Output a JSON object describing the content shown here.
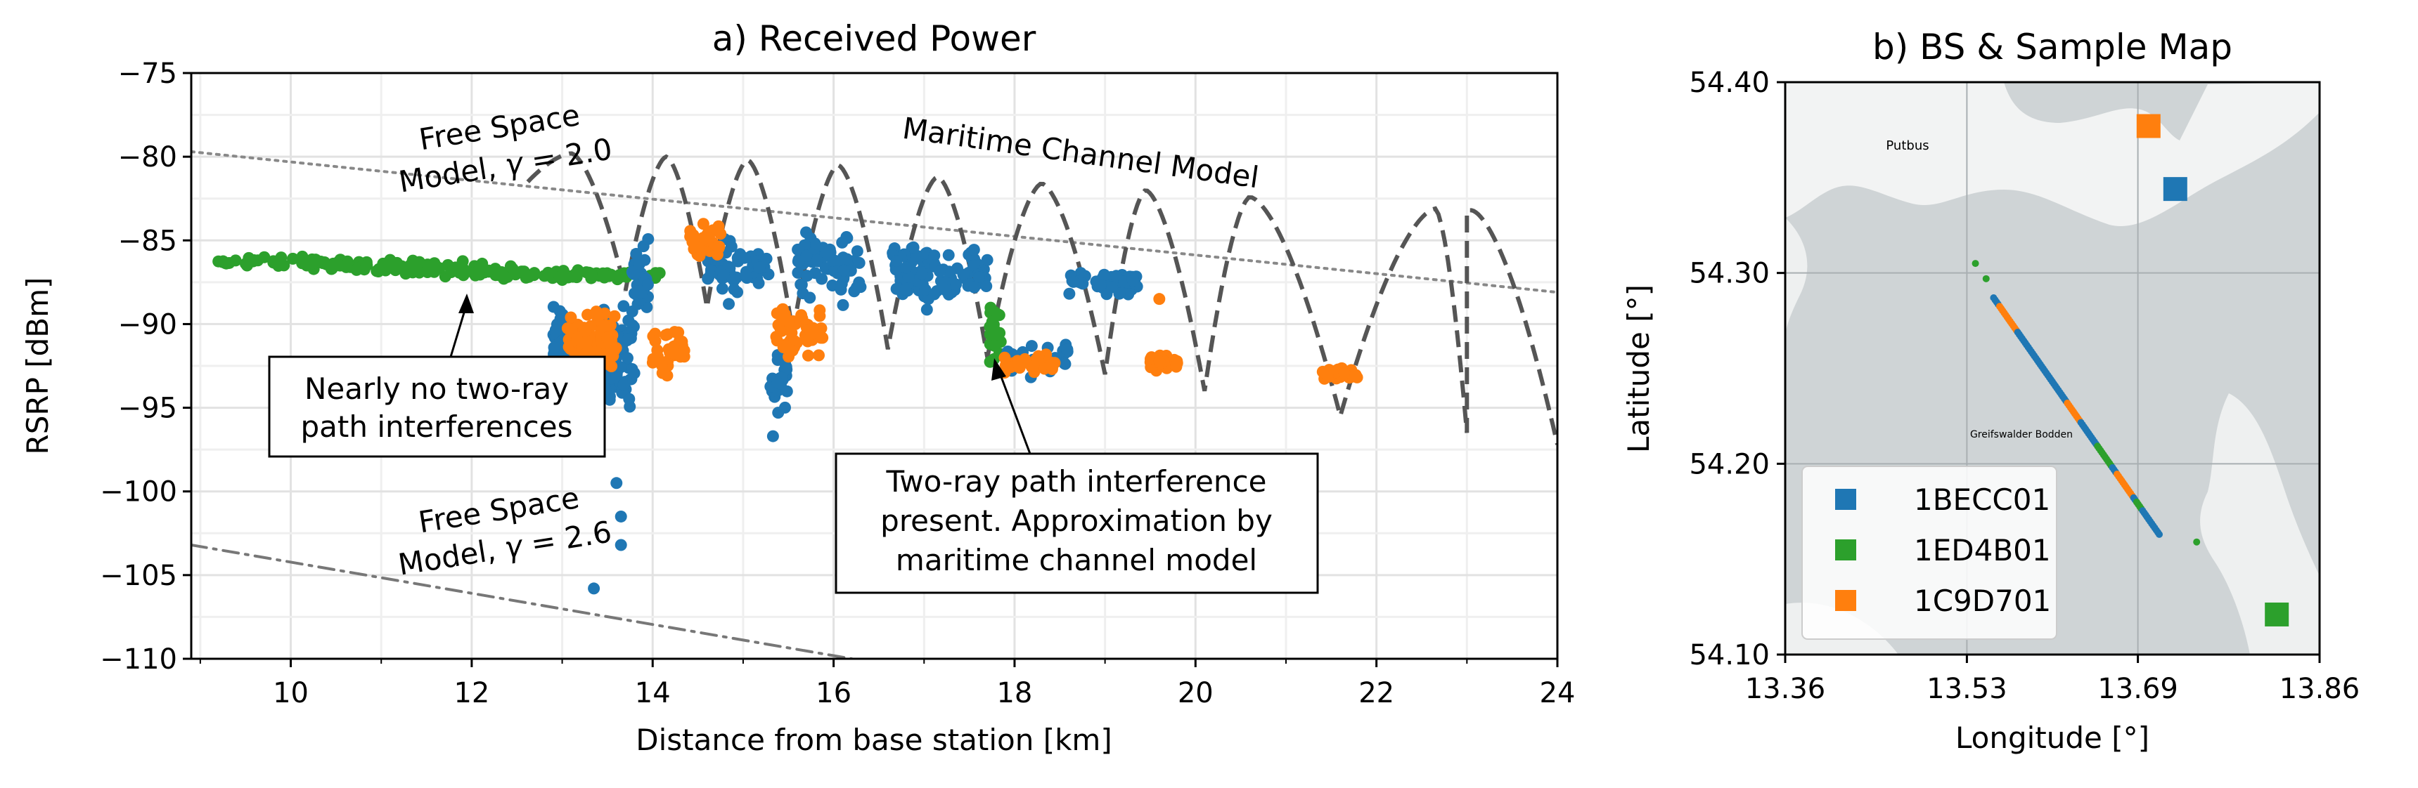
{
  "chart_data": [
    {
      "panel": "a",
      "type": "scatter",
      "title": "a) Received Power",
      "xlabel": "Distance from base station [km]",
      "ylabel": "RSRP [dBm]",
      "xlim": [
        8.9,
        24
      ],
      "ylim": [
        -110,
        -75
      ],
      "xticks": [
        10,
        12,
        14,
        16,
        18,
        20,
        22,
        24
      ],
      "xtick_labels": [
        "10",
        "12",
        "14",
        "16",
        "18",
        "20",
        "22",
        "24"
      ],
      "yticks": [
        -110,
        -105,
        -100,
        -95,
        -90,
        -85,
        -80,
        -75
      ],
      "ytick_labels": [
        "−110",
        "−105",
        "−100",
        "−95",
        "−90",
        "−85",
        "−80",
        "−75"
      ],
      "grid": true,
      "colors": {
        "blue": "#1f77b4",
        "green": "#2ca02c",
        "orange": "#ff7f0e",
        "model": "#555555",
        "fs20": "#888888",
        "fs26": "#777777"
      },
      "lines": [
        {
          "name": "Free Space Model, gamma = 2.0",
          "style": "dotted",
          "points": [
            [
              8.9,
              -79.7
            ],
            [
              24,
              -88.1
            ]
          ]
        },
        {
          "name": "Free Space Model, gamma = 2.6",
          "style": "dashdot",
          "points": [
            [
              8.9,
              -103.2
            ],
            [
              16.2,
              -110
            ]
          ]
        },
        {
          "name": "Maritime Channel Model",
          "style": "dashed",
          "segments": [
            {
              "x0": 12.62,
              "x1": 13.7,
              "peak_x": 13.1,
              "peak_y": -79.8,
              "start_y": -81.5,
              "end_y": -88.0
            },
            {
              "x0": 13.7,
              "x1": 14.6,
              "peak_x": 14.15,
              "peak_y": -80.0,
              "start_y": -88.0,
              "end_y": -89.0
            },
            {
              "x0": 14.6,
              "x1": 15.55,
              "peak_x": 15.05,
              "peak_y": -80.2,
              "start_y": -89.0,
              "end_y": -90.5
            },
            {
              "x0": 15.55,
              "x1": 16.6,
              "peak_x": 16.05,
              "peak_y": -80.5,
              "start_y": -90.5,
              "end_y": -91.5
            },
            {
              "x0": 16.6,
              "x1": 17.7,
              "peak_x": 17.15,
              "peak_y": -81.2,
              "start_y": -91.5,
              "end_y": -92.0
            },
            {
              "x0": 17.7,
              "x1": 19.0,
              "peak_x": 18.3,
              "peak_y": -81.6,
              "start_y": -92.0,
              "end_y": -93.0
            },
            {
              "x0": 19.0,
              "x1": 20.1,
              "peak_x": 19.45,
              "peak_y": -82.0,
              "start_y": -93.0,
              "end_y": -94.0
            },
            {
              "x0": 20.1,
              "x1": 21.6,
              "peak_x": 20.6,
              "peak_y": -82.4,
              "start_y": -94.0,
              "end_y": -95.5
            },
            {
              "x0": 21.6,
              "x1": 23.0,
              "peak_x": 22.65,
              "peak_y": -83.1,
              "start_y": -95.5,
              "end_y": -96.5
            },
            {
              "x0": 23.0,
              "x1": 24.0,
              "peak_x": 23.05,
              "peak_y": -83.2,
              "start_y": -83.2,
              "end_y": -97.2
            }
          ]
        }
      ],
      "series": [
        {
          "name": "1ED4B01",
          "color": "green",
          "clusters": [
            {
              "x": [
                9.2,
                12.6
              ],
              "y_center": -86.4,
              "spread": 0.6,
              "trend": [
                -86.2,
                -86.9
              ],
              "n": 150
            },
            {
              "x": [
                12.6,
                14.1
              ],
              "y_center": -87.1,
              "spread": 0.4,
              "n": 60
            },
            {
              "x": [
                17.7,
                17.85
              ],
              "y_center": -90.5,
              "spread": 2.2,
              "n": 25
            }
          ]
        },
        {
          "name": "1BECC01",
          "color": "blue",
          "clusters": [
            {
              "x": [
                12.9,
                13.15
              ],
              "y_center": -91.0,
              "spread": 3.3,
              "n": 60
            },
            {
              "x": [
                13.4,
                13.8
              ],
              "y_center": -92.0,
              "spread": 4.5,
              "n": 80
            },
            {
              "x": [
                13.75,
                13.95
              ],
              "y_center": -87.5,
              "spread": 3.0,
              "n": 30
            },
            {
              "x": [
                14.6,
                15.3
              ],
              "y_center": -86.5,
              "spread": 2.5,
              "n": 60
            },
            {
              "x": [
                15.3,
                15.5
              ],
              "y_center": -93.5,
              "spread": 2.5,
              "n": 25
            },
            {
              "x": [
                15.6,
                16.3
              ],
              "y_center": -86.5,
              "spread": 2.8,
              "n": 70
            },
            {
              "x": [
                16.65,
                17.7
              ],
              "y_center": -87.0,
              "spread": 2.5,
              "n": 100
            },
            {
              "x": [
                17.9,
                18.6
              ],
              "y_center": -92.0,
              "spread": 1.5,
              "n": 30
            },
            {
              "x": [
                18.6,
                19.4
              ],
              "y_center": -87.5,
              "spread": 1.0,
              "n": 45
            }
          ],
          "extra_points": [
            [
              13.35,
              -105.8
            ],
            [
              13.65,
              -101.5
            ],
            [
              13.65,
              -103.2
            ],
            [
              13.6,
              -99.5
            ],
            [
              15.33,
              -96.7
            ]
          ]
        },
        {
          "name": "1C9D701",
          "color": "orange",
          "clusters": [
            {
              "x": [
                13.05,
                13.6
              ],
              "y_center": -91.0,
              "spread": 2.3,
              "n": 80
            },
            {
              "x": [
                14.0,
                14.35
              ],
              "y_center": -91.5,
              "spread": 2.3,
              "n": 30
            },
            {
              "x": [
                14.4,
                14.75
              ],
              "y_center": -85.0,
              "spread": 1.7,
              "n": 35
            },
            {
              "x": [
                15.35,
                15.9
              ],
              "y_center": -90.5,
              "spread": 2.2,
              "n": 50
            },
            {
              "x": [
                17.85,
                18.45
              ],
              "y_center": -92.4,
              "spread": 0.7,
              "n": 30
            },
            {
              "x": [
                19.5,
                19.8
              ],
              "y_center": -92.3,
              "spread": 0.7,
              "n": 25
            },
            {
              "x": [
                21.4,
                21.8
              ],
              "y_center": -93.0,
              "spread": 0.5,
              "n": 25
            }
          ],
          "extra_points": [
            [
              19.6,
              -88.5
            ],
            [
              13.3,
              -95.0
            ]
          ]
        }
      ],
      "annotations": [
        {
          "text": "Free Space\nModel, γ = 2.0"
        },
        {
          "text": "Maritime Channel Model"
        },
        {
          "text": "Free Space\nModel, γ = 2.6"
        },
        {
          "text": "Nearly no two-ray\npath interferences",
          "arrow_to": [
            11.4,
            -88.2
          ]
        },
        {
          "text": "Two-ray path interference\npresent. Approximation by\nmaritime channel model",
          "arrow_to": [
            15.9,
            -91.8
          ]
        }
      ]
    },
    {
      "panel": "b",
      "type": "scatter",
      "title": "b) BS & Sample Map",
      "xlabel": "Longitude [°]",
      "ylabel": "Latitude [°]",
      "xlim": [
        13.36,
        13.86
      ],
      "ylim": [
        54.1,
        54.4
      ],
      "xticks": [
        13.36,
        13.53,
        13.69,
        13.86
      ],
      "xtick_labels": [
        "13.36",
        "13.53",
        "13.69",
        "13.86"
      ],
      "yticks": [
        54.1,
        54.2,
        54.3,
        54.4
      ],
      "ytick_labels": [
        "54.10",
        "54.20",
        "54.30",
        "54.40"
      ],
      "map_labels": [
        "Putbus",
        "Greifswalder Bodden"
      ],
      "base_stations": [
        {
          "name": "1BECC01",
          "color": "blue",
          "lon": 13.725,
          "lat": 54.344
        },
        {
          "name": "1ED4B01",
          "color": "green",
          "lon": 13.82,
          "lat": 54.121
        },
        {
          "name": "1C9D701",
          "color": "orange",
          "lon": 13.7,
          "lat": 54.377
        }
      ],
      "track": {
        "start": [
          13.555,
          54.287
        ],
        "end": [
          13.71,
          54.163
        ],
        "green_points": [
          [
            13.538,
            54.305
          ],
          [
            13.548,
            54.297
          ],
          [
            13.745,
            54.159
          ]
        ]
      },
      "legend": {
        "location": "lower-left",
        "entries": [
          "1BECC01",
          "1ED4B01",
          "1C9D701"
        ]
      }
    }
  ]
}
